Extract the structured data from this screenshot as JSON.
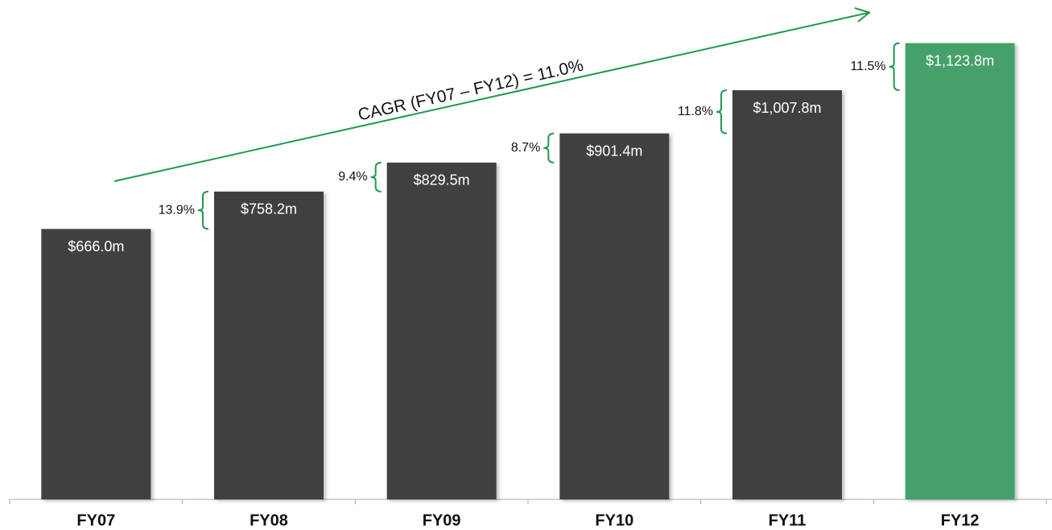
{
  "chart_data": {
    "type": "bar",
    "categories": [
      "FY07",
      "FY08",
      "FY09",
      "FY10",
      "FY11",
      "FY12"
    ],
    "values": [
      666.0,
      758.2,
      829.5,
      901.4,
      1007.8,
      1123.8
    ],
    "value_labels": [
      "$666.0m",
      "$758.2m",
      "$829.5m",
      "$901.4m",
      "$1,007.8m",
      "$1,123.8m"
    ],
    "colors": [
      "#404040",
      "#404040",
      "#404040",
      "#404040",
      "#404040",
      "#45a06a"
    ],
    "ylim": [
      0,
      1230
    ],
    "growth": {
      "values": [
        13.9,
        9.4,
        8.7,
        11.8,
        11.5
      ],
      "value_labels": [
        "13.9%",
        "9.4%",
        "8.7%",
        "11.8%",
        "11.5%"
      ],
      "color": "#1e9a50"
    },
    "annotation": "CAGR (FY07 – FY12) = 11.0%",
    "annotation_color": "#1e9a50"
  }
}
